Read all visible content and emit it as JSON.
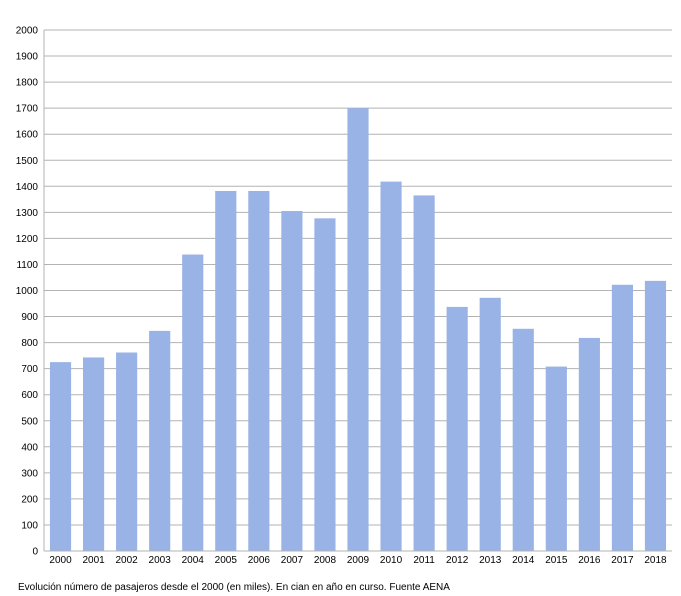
{
  "chart_data": {
    "type": "bar",
    "categories": [
      "2000",
      "2001",
      "2002",
      "2003",
      "2004",
      "2005",
      "2006",
      "2007",
      "2008",
      "2009",
      "2010",
      "2011",
      "2012",
      "2013",
      "2014",
      "2015",
      "2016",
      "2017",
      "2018"
    ],
    "values": [
      725,
      743,
      762,
      845,
      1138,
      1382,
      1382,
      1305,
      1277,
      1700,
      1418,
      1365,
      937,
      972,
      853,
      708,
      818,
      1022,
      1037
    ],
    "ylim": [
      0,
      2000
    ],
    "ytick_step": 100,
    "grid": true,
    "bar_color": "#99b3e6",
    "caption": "Evolución número de pasajeros desde el 2000 (en miles). En cian en año en curso. Fuente AENA"
  }
}
